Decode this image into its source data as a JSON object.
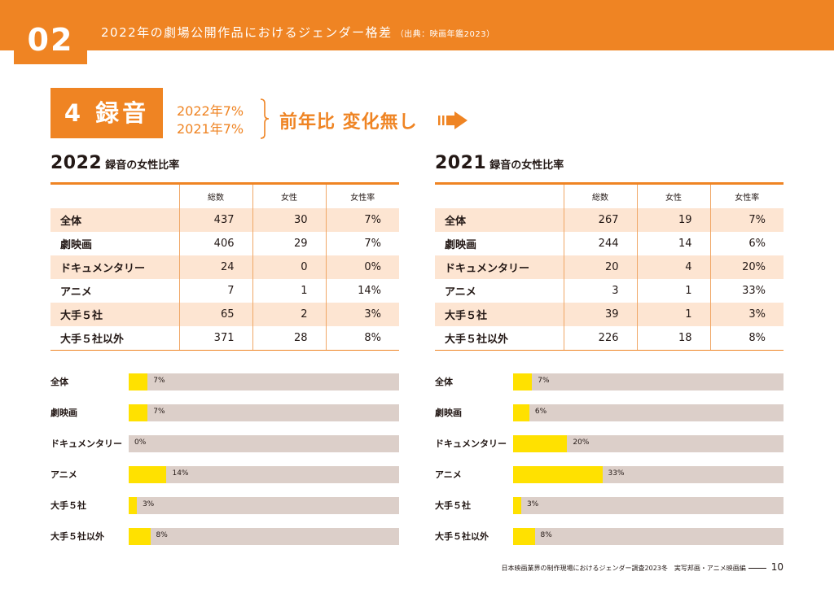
{
  "header": {
    "number": "02",
    "title": "2022年の劇場公開作品におけるジェンダー格差",
    "source": "（出典：映画年鑑2023）"
  },
  "section": {
    "label": "4 録音",
    "yoy_2022": "2022年7%",
    "yoy_2021": "2021年7%",
    "result": "前年比 変化無し"
  },
  "columns": [
    "総数",
    "女性",
    "女性率"
  ],
  "panels": [
    {
      "year": "2022",
      "subtitle": "録音の女性比率",
      "rows": [
        {
          "label": "全体",
          "total": "437",
          "female": "30",
          "rate": "7%"
        },
        {
          "label": "劇映画",
          "total": "406",
          "female": "29",
          "rate": "7%"
        },
        {
          "label": "ドキュメンタリー",
          "total": "24",
          "female": "0",
          "rate": "0%"
        },
        {
          "label": "アニメ",
          "total": "7",
          "female": "1",
          "rate": "14%"
        },
        {
          "label": "大手５社",
          "total": "65",
          "female": "2",
          "rate": "3%"
        },
        {
          "label": "大手５社以外",
          "total": "371",
          "female": "28",
          "rate": "8%"
        }
      ]
    },
    {
      "year": "2021",
      "subtitle": "録音の女性比率",
      "rows": [
        {
          "label": "全体",
          "total": "267",
          "female": "19",
          "rate": "7%"
        },
        {
          "label": "劇映画",
          "total": "244",
          "female": "14",
          "rate": "6%"
        },
        {
          "label": "ドキュメンタリー",
          "total": "20",
          "female": "4",
          "rate": "20%"
        },
        {
          "label": "アニメ",
          "total": "3",
          "female": "1",
          "rate": "33%"
        },
        {
          "label": "大手５社",
          "total": "39",
          "female": "1",
          "rate": "3%"
        },
        {
          "label": "大手５社以外",
          "total": "226",
          "female": "18",
          "rate": "8%"
        }
      ]
    }
  ],
  "chart_data": [
    {
      "type": "bar",
      "categories": [
        "全体",
        "劇映画",
        "ドキュメンタリー",
        "アニメ",
        "大手５社",
        "大手５社以外"
      ],
      "values": [
        7,
        7,
        0,
        14,
        3,
        8
      ],
      "value_labels": [
        "7%",
        "7%",
        "0%",
        "14%",
        "3%",
        "8%"
      ],
      "xlim": [
        0,
        100
      ]
    },
    {
      "type": "bar",
      "categories": [
        "全体",
        "劇映画",
        "ドキュメンタリー",
        "アニメ",
        "大手５社",
        "大手５社以外"
      ],
      "values": [
        7,
        6,
        20,
        33,
        3,
        8
      ],
      "value_labels": [
        "7%",
        "6%",
        "20%",
        "33%",
        "3%",
        "8%"
      ],
      "xlim": [
        0,
        100
      ]
    }
  ],
  "colors": {
    "accent": "#ef8423",
    "row_shade": "#fde5d2",
    "bar_fill": "#ffe100",
    "bar_track": "#dccfc9"
  },
  "footer": {
    "text": "日本映画業界の制作現場におけるジェンダー調査2023冬　実写邦画・アニメ映画編",
    "page": "10"
  }
}
